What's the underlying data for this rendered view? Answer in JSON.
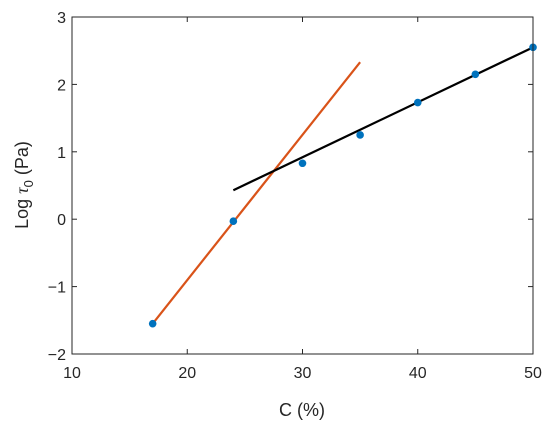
{
  "chart_data": {
    "type": "scatter",
    "xlabel": "C (%)",
    "ylabel": {
      "prefix": "Log ",
      "symbol": "τ",
      "subscript": "0",
      "unit": " (Pa)"
    },
    "xlim": [
      10,
      50
    ],
    "ylim": [
      -2,
      3
    ],
    "xticks": [
      10,
      20,
      30,
      40,
      50
    ],
    "yticks": [
      -2,
      -1,
      0,
      1,
      2,
      3
    ],
    "xtick_labels": [
      "10",
      "20",
      "30",
      "40",
      "50"
    ],
    "ytick_labels": [
      "−2",
      "−1",
      "0",
      "1",
      "2",
      "3"
    ],
    "grid": false,
    "series": [
      {
        "kind": "points",
        "color": "#0072BD",
        "x": [
          17,
          24,
          30,
          35,
          40,
          45,
          50
        ],
        "y": [
          -1.55,
          -0.03,
          0.83,
          1.25,
          1.73,
          2.15,
          2.55
        ]
      },
      {
        "kind": "line",
        "color": "#D95319",
        "x": [
          17,
          35
        ],
        "y": [
          -1.55,
          2.33
        ]
      },
      {
        "kind": "line",
        "color": "#000000",
        "x": [
          24,
          50
        ],
        "y": [
          0.43,
          2.55
        ]
      }
    ]
  }
}
